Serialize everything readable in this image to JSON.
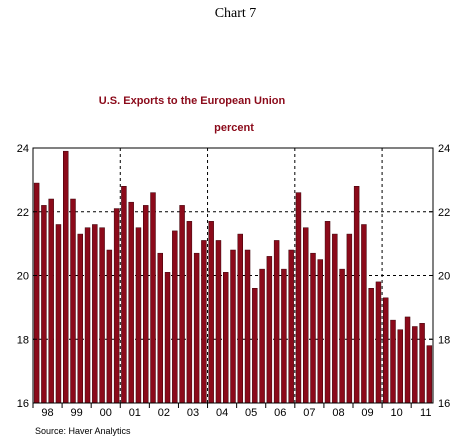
{
  "page_header": "Chart 7",
  "chart_data": {
    "type": "bar",
    "title": "U.S. Exports to the European Union",
    "subtitle": "percent",
    "source": "Source: Haver Analytics",
    "xlabel": "",
    "ylabel": "",
    "ylim": [
      16,
      24
    ],
    "y_ticks": [
      "16",
      "18",
      "20",
      "22",
      "24"
    ],
    "x_tick_labels": [
      "98",
      "99",
      "00",
      "01",
      "02",
      "03",
      "04",
      "05",
      "06",
      "07",
      "08",
      "09",
      "10",
      "11"
    ],
    "grid": "dashed lines at 18, 20, 22 and at start of 2001, 2004, 2007, 2010",
    "bar_color": "#8b0a1a",
    "start_period": "1998 Q1",
    "frequency": "quarterly",
    "values": [
      22.9,
      22.2,
      22.4,
      21.6,
      23.9,
      22.4,
      21.3,
      21.5,
      21.6,
      21.5,
      20.8,
      22.1,
      22.8,
      22.3,
      21.5,
      22.2,
      22.6,
      20.7,
      20.1,
      21.4,
      22.2,
      21.7,
      20.7,
      21.1,
      21.7,
      21.1,
      20.1,
      20.8,
      21.3,
      20.8,
      19.6,
      20.2,
      20.6,
      21.1,
      20.2,
      20.8,
      22.6,
      21.5,
      20.7,
      20.5,
      21.7,
      21.3,
      20.2,
      21.3,
      22.8,
      21.6,
      19.6,
      19.8,
      19.3,
      18.6,
      18.3,
      18.7,
      18.4,
      18.5,
      17.8
    ]
  }
}
